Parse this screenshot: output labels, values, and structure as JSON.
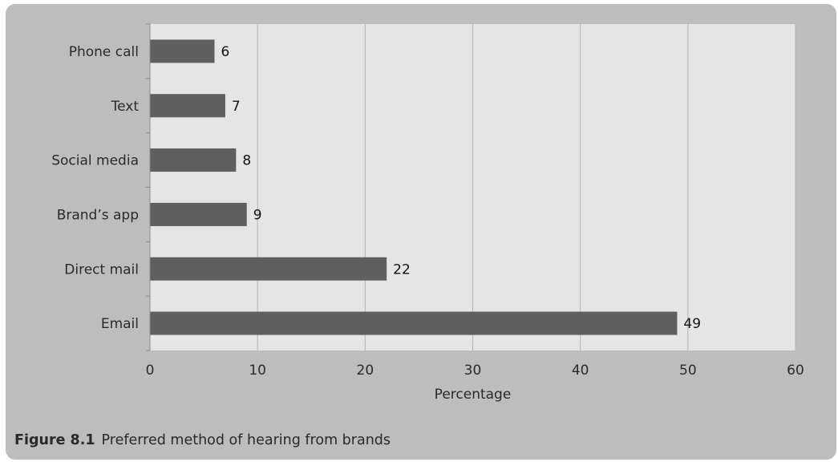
{
  "figure": {
    "number": "Figure 8.1",
    "caption": "Preferred method of hearing from brands"
  },
  "chart_data": {
    "type": "bar",
    "orientation": "horizontal",
    "categories": [
      "Phone call",
      "Text",
      "Social media",
      "Brand’s app",
      "Direct mail",
      "Email"
    ],
    "values": [
      6,
      7,
      8,
      9,
      22,
      49
    ],
    "data_labels": [
      "6",
      "7",
      "8",
      "9",
      "22",
      "49"
    ],
    "xlabel": "Percentage",
    "ylabel": "",
    "xlim": [
      0,
      60
    ],
    "xticks": [
      "0",
      "10",
      "20",
      "30",
      "40",
      "50",
      "60"
    ],
    "grid": true,
    "legend": "none",
    "colors": {
      "bar": "#5f5f60",
      "plot_background": "#e5e5e6",
      "panel_background": "#bdbdbe",
      "gridline": "#b3b3b3"
    }
  }
}
